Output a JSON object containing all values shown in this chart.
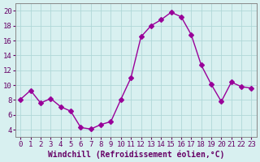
{
  "x": [
    0,
    1,
    2,
    3,
    4,
    5,
    6,
    7,
    8,
    9,
    10,
    11,
    12,
    13,
    14,
    15,
    16,
    17,
    18,
    19,
    20,
    21,
    22,
    23
  ],
  "y": [
    8.1,
    9.3,
    7.6,
    8.2,
    7.1,
    6.5,
    4.3,
    4.1,
    4.7,
    5.1,
    8.1,
    11.0,
    16.5,
    18.0,
    18.8,
    19.8,
    19.2,
    16.8,
    12.7,
    10.1,
    7.8,
    10.4,
    9.8,
    9.6
  ],
  "line_color": "#990099",
  "marker": "D",
  "marker_size": 3,
  "bg_color": "#d8f0f0",
  "grid_color": "#b0d8d8",
  "xlabel": "Windchill (Refroidissement éolien,°C)",
  "ylim": [
    3,
    21
  ],
  "yticks": [
    4,
    6,
    8,
    10,
    12,
    14,
    16,
    18,
    20
  ],
  "xlim": [
    -0.5,
    23.5
  ],
  "xticks": [
    0,
    1,
    2,
    3,
    4,
    5,
    6,
    7,
    8,
    9,
    10,
    11,
    12,
    13,
    14,
    15,
    16,
    17,
    18,
    19,
    20,
    21,
    22,
    23
  ],
  "xlabel_fontsize": 7,
  "tick_fontsize": 6.5
}
